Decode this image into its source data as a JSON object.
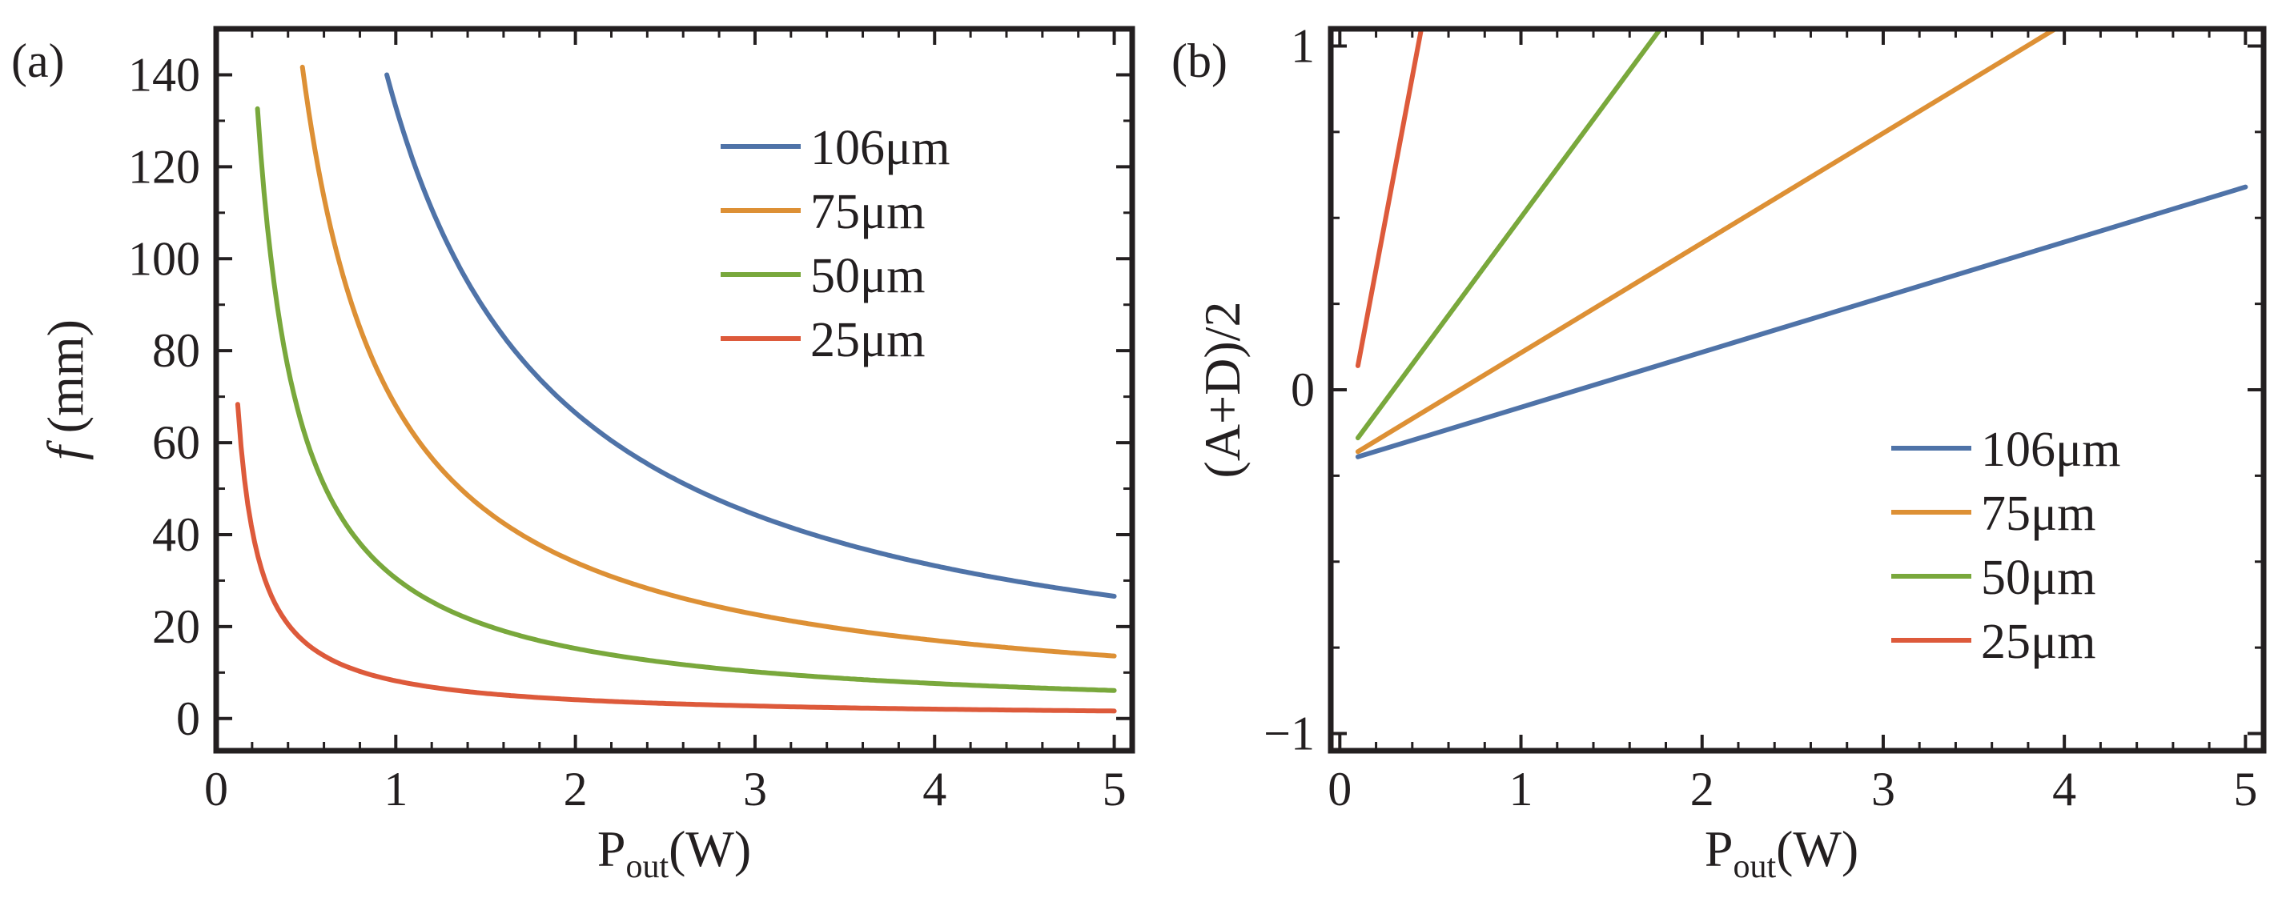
{
  "chart_data": [
    {
      "type": "line",
      "panel_label": "(a)",
      "xlabel_main": "P",
      "xlabel_sub": "out",
      "xlabel_unit": "(W)",
      "ylabel_italic": "f",
      "ylabel_unit": " (mm)",
      "xlim": [
        0,
        5.1
      ],
      "ylim": [
        -7,
        150
      ],
      "xticks": [
        0,
        1,
        2,
        3,
        4,
        5
      ],
      "yticks": [
        0,
        20,
        40,
        60,
        80,
        100,
        120,
        140
      ],
      "legend": {
        "position": "top-right",
        "labels": [
          "106μm",
          "75μm",
          "50μm",
          "25μm"
        ]
      },
      "series": [
        {
          "name": "106μm",
          "color": "#4f73a8",
          "x_start": 0.95,
          "x_end": 5.0,
          "k": 133,
          "model": "k/x"
        },
        {
          "name": "75μm",
          "color": "#dd9035",
          "x_start": 0.48,
          "x_end": 5.0,
          "k": 68,
          "model": "k/x"
        },
        {
          "name": "50μm",
          "color": "#79a83c",
          "x_start": 0.23,
          "x_end": 5.0,
          "k": 30.5,
          "model": "k/x"
        },
        {
          "name": "25μm",
          "color": "#dd5a3b",
          "x_start": 0.12,
          "x_end": 5.0,
          "k": 8.2,
          "model": "k/x"
        }
      ]
    },
    {
      "type": "line",
      "panel_label": "(b)",
      "xlabel_main": "P",
      "xlabel_sub": "out",
      "xlabel_unit": "(W)",
      "ylabel": "(A+D)/2",
      "xlim": [
        -0.05,
        5.1
      ],
      "ylim": [
        -1.05,
        1.05
      ],
      "xticks": [
        0,
        1,
        2,
        3,
        4,
        5
      ],
      "yticks": [
        -1,
        0,
        1
      ],
      "ytick_labels": [
        "−1",
        "0",
        "1"
      ],
      "legend": {
        "position": "bottom-right",
        "labels": [
          "106μm",
          "75μm",
          "50μm",
          "25μm"
        ]
      },
      "series": [
        {
          "name": "106μm",
          "color": "#4f73a8",
          "x": [
            0.1,
            5.0
          ],
          "y": [
            -0.195,
            0.59
          ]
        },
        {
          "name": "75μm",
          "color": "#dd9035",
          "x": [
            0.1,
            3.95
          ],
          "y": [
            -0.18,
            1.05
          ]
        },
        {
          "name": "50μm",
          "color": "#79a83c",
          "x": [
            0.1,
            1.77
          ],
          "y": [
            -0.14,
            1.05
          ]
        },
        {
          "name": "25μm",
          "color": "#dd5a3b",
          "x": [
            0.1,
            0.45
          ],
          "y": [
            0.07,
            1.05
          ]
        }
      ]
    }
  ]
}
